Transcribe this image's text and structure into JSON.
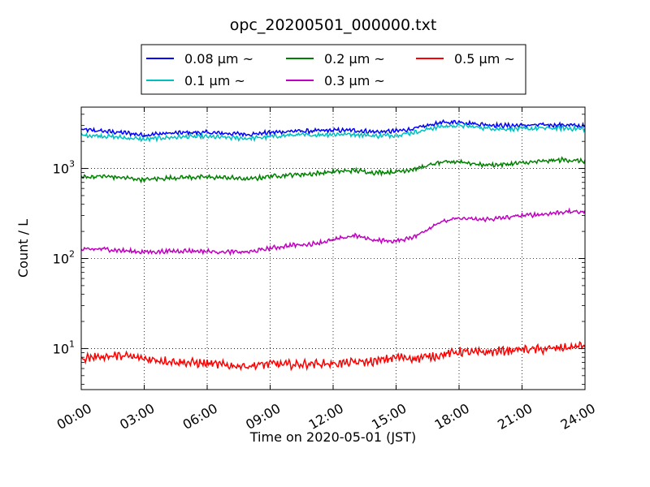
{
  "chart_data": {
    "type": "line",
    "title": "opc_20200501_000000.txt",
    "xlabel": "Time on 2020-05-01 (JST)",
    "ylabel": "Count / L",
    "y_scale": "log",
    "xlim": [
      0,
      24
    ],
    "ylim": [
      3.5,
      4800
    ],
    "grid": true,
    "legend_position": "top-center",
    "x_ticks": [
      {
        "value": 0,
        "label": "00:00"
      },
      {
        "value": 3,
        "label": "03:00"
      },
      {
        "value": 6,
        "label": "06:00"
      },
      {
        "value": 9,
        "label": "09:00"
      },
      {
        "value": 12,
        "label": "12:00"
      },
      {
        "value": 15,
        "label": "15:00"
      },
      {
        "value": 18,
        "label": "18:00"
      },
      {
        "value": 21,
        "label": "21:00"
      },
      {
        "value": 24,
        "label": "24:00"
      }
    ],
    "y_ticks": [
      {
        "value": 10,
        "base": "10",
        "exp": "1"
      },
      {
        "value": 100,
        "base": "10",
        "exp": "2"
      },
      {
        "value": 1000,
        "base": "10",
        "exp": "3"
      }
    ],
    "x_hours": [
      0,
      1,
      2,
      3,
      4,
      5,
      6,
      7,
      8,
      9,
      10,
      11,
      12,
      13,
      14,
      15,
      16,
      17,
      18,
      19,
      20,
      21,
      22,
      23,
      24
    ],
    "series": [
      {
        "name": "0.08 μm ~",
        "color": "#0000ff",
        "values": [
          2700,
          2600,
          2500,
          2350,
          2450,
          2500,
          2500,
          2450,
          2400,
          2500,
          2600,
          2600,
          2650,
          2650,
          2550,
          2600,
          2800,
          3200,
          3300,
          3100,
          3000,
          3000,
          3050,
          3050,
          2950
        ]
      },
      {
        "name": "0.1 μm ~",
        "color": "#00bfbf",
        "values": [
          2350,
          2300,
          2200,
          2100,
          2200,
          2250,
          2250,
          2200,
          2150,
          2250,
          2350,
          2350,
          2400,
          2400,
          2300,
          2350,
          2550,
          2900,
          3000,
          2850,
          2750,
          2750,
          2800,
          2800,
          2750
        ]
      },
      {
        "name": "0.2 μm ~",
        "color": "#008000",
        "values": [
          800,
          820,
          790,
          750,
          780,
          800,
          800,
          790,
          760,
          820,
          850,
          870,
          920,
          950,
          900,
          920,
          1000,
          1150,
          1200,
          1100,
          1100,
          1150,
          1200,
          1250,
          1200
        ]
      },
      {
        "name": "0.3 μm ~",
        "color": "#bf00bf",
        "values": [
          125,
          128,
          122,
          118,
          120,
          122,
          120,
          118,
          118,
          130,
          140,
          145,
          160,
          180,
          160,
          155,
          180,
          250,
          280,
          270,
          280,
          300,
          310,
          330,
          330
        ]
      },
      {
        "name": "0.5 μm ~",
        "color": "#ff0000",
        "values": [
          7.8,
          8.2,
          8.3,
          7.7,
          7.3,
          7.0,
          6.8,
          6.5,
          6.4,
          6.8,
          6.6,
          6.8,
          6.8,
          7.0,
          7.2,
          8.0,
          7.8,
          8.4,
          9.2,
          9.0,
          9.4,
          9.8,
          9.8,
          10.2,
          10.8
        ]
      }
    ]
  }
}
